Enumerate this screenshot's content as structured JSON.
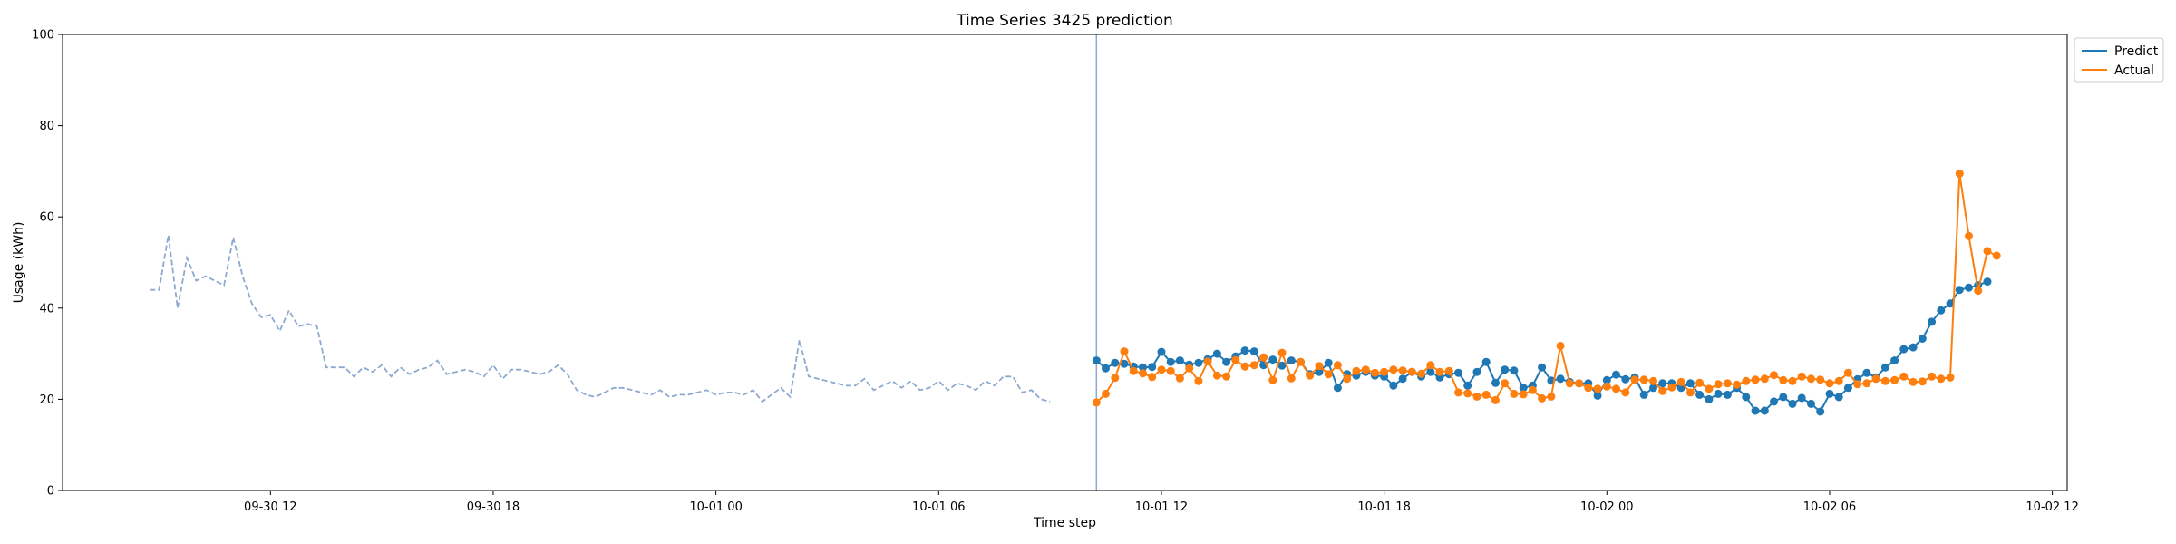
{
  "chart_data": {
    "type": "line",
    "title": "Time Series 3425 prediction",
    "xlabel": "Time step",
    "ylabel": "Usage (kWh)",
    "ylim": [
      0,
      100
    ],
    "xlim": [
      "2024-09-30 06:24",
      "2024-10-02 12:24"
    ],
    "ytick_values": [
      0,
      20,
      40,
      60,
      80,
      100
    ],
    "xticks": [
      {
        "t": "2024-09-30 12:00",
        "label": "09-30 12"
      },
      {
        "t": "2024-09-30 18:00",
        "label": "09-30 18"
      },
      {
        "t": "2024-10-01 00:00",
        "label": "10-01 00"
      },
      {
        "t": "2024-10-01 06:00",
        "label": "10-01 06"
      },
      {
        "t": "2024-10-01 12:00",
        "label": "10-01 12"
      },
      {
        "t": "2024-10-01 18:00",
        "label": "10-01 18"
      },
      {
        "t": "2024-10-02 00:00",
        "label": "10-02 00"
      },
      {
        "t": "2024-10-02 06:00",
        "label": "10-02 06"
      },
      {
        "t": "2024-10-02 12:00",
        "label": "10-02 12"
      }
    ],
    "grid": false,
    "legend_position": "top-right, outside plot",
    "forecast_start": "2024-10-01 10:15",
    "history": {
      "start": "2024-09-30 08:45",
      "step_minutes": 15,
      "color": "#8ea9cf",
      "style": "dashed",
      "values": [
        44,
        44,
        56,
        40,
        51,
        46,
        47,
        46,
        45,
        55.5,
        47,
        41,
        38,
        38.5,
        35,
        39.5,
        36,
        36.5,
        36,
        27,
        27,
        27,
        25,
        27,
        26,
        27.5,
        25,
        27,
        25.5,
        26.5,
        27,
        28.5,
        25.5,
        26,
        26.5,
        26,
        25,
        27.5,
        24.5,
        26.5,
        26.5,
        26,
        25.5,
        26,
        27.5,
        25.5,
        22,
        21,
        20.5,
        21.5,
        22.5,
        22.5,
        22,
        21.5,
        21,
        22,
        20.5,
        21,
        21,
        21.5,
        22,
        21,
        21.5,
        21.5,
        21,
        22,
        19.5,
        21,
        22.5,
        20.5,
        33,
        25,
        24.5,
        24,
        23.5,
        23,
        23,
        24.5,
        22,
        23,
        24,
        22.5,
        24,
        22,
        22.5,
        24,
        22,
        23.5,
        23,
        22,
        24,
        23,
        25,
        25,
        21.5,
        22,
        20,
        19.5
      ]
    },
    "series": [
      {
        "name": "Predict",
        "color": "#1f77b4",
        "start": "2024-10-01 10:15",
        "step_minutes": 15,
        "values": [
          28.5,
          26.8,
          28,
          27.8,
          27.2,
          27,
          27.1,
          30.4,
          28.2,
          28.5,
          27.6,
          28,
          28.8,
          30,
          28.2,
          29.4,
          30.7,
          30.5,
          27.5,
          28.7,
          27.4,
          28.5,
          28.2,
          25.5,
          26,
          28,
          22.5,
          25.5,
          25.2,
          26,
          25.2,
          25,
          23,
          24.5,
          26,
          25,
          26,
          24.8,
          25.5,
          25.8,
          23,
          26,
          28.2,
          23.6,
          26.5,
          26.3,
          22.5,
          23,
          27,
          24.1,
          24.5,
          23.8,
          23.5,
          23.5,
          20.8,
          24.2,
          25.4,
          24.4,
          24.8,
          21,
          22.5,
          23.5,
          23.5,
          22.5,
          23.5,
          21,
          20,
          21.2,
          21,
          22.5,
          20.5,
          17.5,
          17.5,
          19.5,
          20.5,
          19,
          20.3,
          19,
          17.3,
          21.2,
          20.5,
          22.5,
          24.4,
          25.8,
          24.8,
          27,
          28.5,
          31,
          31.4,
          33.3,
          37,
          39.5,
          41,
          44,
          44.5,
          45,
          45.8
        ]
      },
      {
        "name": "Actual",
        "color": "#ff7f0e",
        "start": "2024-10-01 10:15",
        "step_minutes": 15,
        "values": [
          19.3,
          21.2,
          24.7,
          30.5,
          26.2,
          25.7,
          24.9,
          26.5,
          26.2,
          24.6,
          26.8,
          24,
          28.3,
          25.2,
          25,
          28.6,
          27.2,
          27.5,
          29.2,
          24.2,
          30.2,
          24.6,
          28.2,
          25.2,
          27.3,
          25.5,
          27.5,
          24.5,
          26.2,
          26.5,
          25.8,
          26,
          26.5,
          26.3,
          26,
          25.6,
          27.5,
          26,
          26.2,
          21.5,
          21.3,
          20.6,
          21,
          19.8,
          23.5,
          21.2,
          21.1,
          22,
          20.2,
          20.6,
          31.7,
          23.5,
          23.5,
          22.5,
          22.3,
          22.8,
          22.3,
          21.5,
          24.3,
          24.3,
          24,
          21.8,
          22.6,
          23.8,
          21.5,
          23.6,
          22.3,
          23.3,
          23.5,
          23.2,
          24,
          24.3,
          24.5,
          25.3,
          24.2,
          24,
          25,
          24.5,
          24.3,
          23.5,
          24,
          25.8,
          23.3,
          23.5,
          24.5,
          24,
          24.2,
          25,
          23.8,
          23.9,
          25,
          24.5,
          24.8,
          69.5,
          55.8,
          43.8,
          52.5,
          51.5
        ]
      }
    ],
    "legend": [
      "Predict",
      "Actual"
    ]
  }
}
